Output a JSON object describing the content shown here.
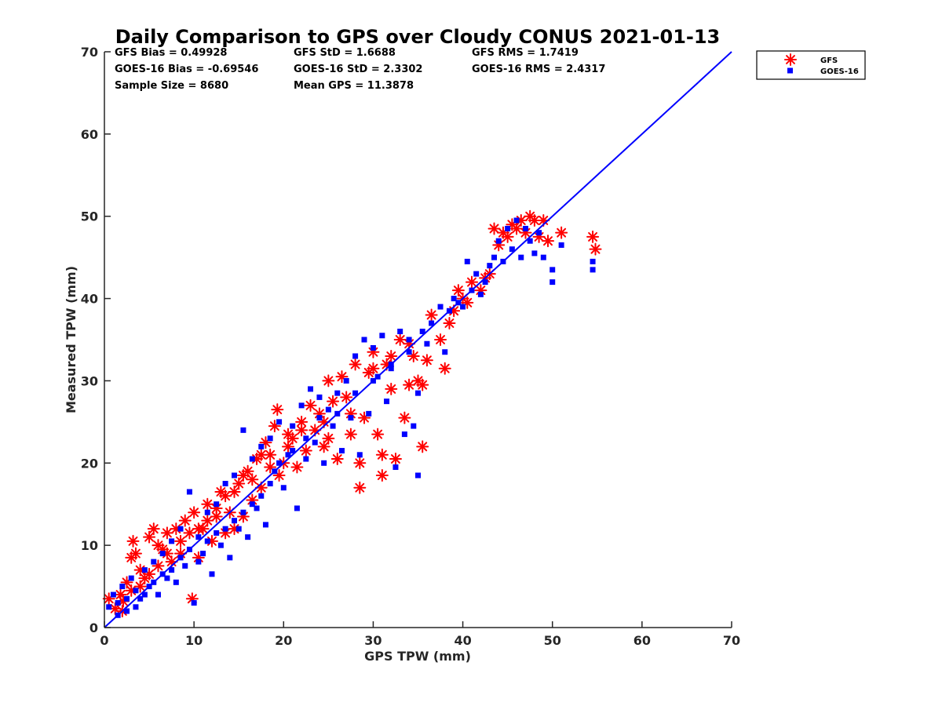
{
  "chart_data": {
    "type": "scatter",
    "title": "Daily Comparison to GPS over Cloudy CONUS 2021-01-13",
    "xlabel": "GPS TPW (mm)",
    "ylabel": "Measured TPW (mm)",
    "xlim": [
      0,
      70
    ],
    "ylim": [
      0,
      70
    ],
    "xticks": [
      0,
      10,
      20,
      30,
      40,
      50,
      60,
      70
    ],
    "yticks": [
      0,
      10,
      20,
      30,
      40,
      50,
      60,
      70
    ],
    "grid": false,
    "legend_position": "outside-top-right",
    "reference_line": {
      "x": [
        0,
        70
      ],
      "y": [
        0,
        70
      ],
      "color": "#0000ff"
    },
    "stats": [
      "GFS Bias = 0.49928",
      "GOES-16 Bias = -0.69546",
      "Sample Size = 8680",
      "GFS StD = 1.6688",
      "GOES-16 StD = 2.3302",
      "Mean GPS = 11.3878",
      "GFS RMS = 1.7419",
      "GOES-16 RMS = 2.4317"
    ],
    "series": [
      {
        "name": "GFS",
        "marker": "asterisk",
        "color": "#ff0000",
        "points": [
          [
            0.5,
            3.5
          ],
          [
            1.2,
            2.3
          ],
          [
            1.8,
            4.0
          ],
          [
            2.1,
            3.2
          ],
          [
            2.5,
            5.5
          ],
          [
            3.0,
            8.5
          ],
          [
            3.2,
            10.5
          ],
          [
            3.5,
            9.0
          ],
          [
            4.0,
            7.0
          ],
          [
            4.5,
            6.0
          ],
          [
            5.0,
            11.0
          ],
          [
            5.5,
            12.0
          ],
          [
            6.0,
            10.0
          ],
          [
            6.5,
            9.5
          ],
          [
            7.0,
            11.5
          ],
          [
            7.5,
            8.0
          ],
          [
            8.0,
            12.0
          ],
          [
            8.5,
            9.0
          ],
          [
            9.0,
            13.0
          ],
          [
            9.8,
            3.5
          ],
          [
            10.0,
            14.0
          ],
          [
            10.5,
            8.5
          ],
          [
            11.0,
            12.0
          ],
          [
            11.5,
            15.0
          ],
          [
            12.0,
            10.5
          ],
          [
            12.5,
            13.5
          ],
          [
            13.0,
            16.5
          ],
          [
            13.5,
            11.5
          ],
          [
            14.0,
            14.0
          ],
          [
            14.5,
            12.0
          ],
          [
            15.0,
            17.5
          ],
          [
            15.5,
            13.5
          ],
          [
            16.0,
            19.0
          ],
          [
            16.5,
            15.5
          ],
          [
            17.0,
            20.5
          ],
          [
            17.5,
            17.0
          ],
          [
            18.0,
            22.5
          ],
          [
            18.5,
            19.5
          ],
          [
            19.0,
            24.5
          ],
          [
            19.3,
            26.5
          ],
          [
            19.5,
            18.5
          ],
          [
            20.0,
            20.0
          ],
          [
            20.5,
            22.0
          ],
          [
            21.0,
            23.0
          ],
          [
            21.5,
            19.5
          ],
          [
            22.0,
            25.0
          ],
          [
            22.5,
            21.5
          ],
          [
            23.0,
            27.0
          ],
          [
            23.5,
            24.0
          ],
          [
            24.0,
            26.0
          ],
          [
            24.5,
            22.0
          ],
          [
            25.0,
            30.0
          ],
          [
            25.5,
            27.5
          ],
          [
            26.0,
            20.5
          ],
          [
            26.5,
            30.5
          ],
          [
            27.0,
            28.0
          ],
          [
            27.5,
            23.5
          ],
          [
            28.0,
            32.0
          ],
          [
            28.5,
            17.0
          ],
          [
            28.5,
            20.0
          ],
          [
            29.0,
            25.5
          ],
          [
            29.5,
            31.0
          ],
          [
            30.0,
            33.5
          ],
          [
            30.5,
            23.5
          ],
          [
            31.0,
            21.0
          ],
          [
            31.0,
            18.5
          ],
          [
            31.5,
            32.0
          ],
          [
            32.0,
            29.0
          ],
          [
            32.5,
            20.5
          ],
          [
            33.0,
            35.0
          ],
          [
            33.5,
            25.5
          ],
          [
            34.0,
            29.5
          ],
          [
            34.5,
            33.0
          ],
          [
            35.0,
            30.0
          ],
          [
            35.5,
            22.0
          ],
          [
            35.5,
            29.5
          ],
          [
            36.0,
            32.5
          ],
          [
            37.5,
            35.0
          ],
          [
            38.0,
            31.5
          ],
          [
            38.5,
            37.0
          ],
          [
            39.0,
            38.5
          ],
          [
            40.0,
            40.0
          ],
          [
            40.5,
            39.5
          ],
          [
            41.0,
            42.0
          ],
          [
            42.0,
            41.0
          ],
          [
            43.0,
            43.0
          ],
          [
            43.5,
            48.5
          ],
          [
            44.0,
            46.5
          ],
          [
            44.5,
            48.0
          ],
          [
            45.0,
            47.5
          ],
          [
            45.5,
            49.0
          ],
          [
            46.0,
            48.5
          ],
          [
            46.5,
            49.5
          ],
          [
            47.0,
            48.0
          ],
          [
            47.5,
            50.0
          ],
          [
            48.0,
            49.5
          ],
          [
            48.5,
            47.5
          ],
          [
            49.0,
            49.5
          ],
          [
            49.5,
            47.0
          ],
          [
            51.0,
            48.0
          ],
          [
            54.5,
            47.5
          ],
          [
            54.8,
            46.0
          ],
          [
            2.0,
            2.0
          ],
          [
            3.0,
            4.5
          ],
          [
            4.0,
            5.0
          ],
          [
            5.0,
            6.5
          ],
          [
            6.0,
            7.5
          ],
          [
            7.0,
            9.0
          ],
          [
            8.5,
            10.5
          ],
          [
            9.5,
            11.5
          ],
          [
            10.5,
            12.0
          ],
          [
            11.5,
            13.0
          ],
          [
            12.5,
            14.5
          ],
          [
            13.5,
            16.0
          ],
          [
            14.5,
            16.5
          ],
          [
            15.5,
            18.5
          ],
          [
            16.5,
            18.0
          ],
          [
            17.5,
            21.0
          ],
          [
            18.5,
            21.0
          ],
          [
            20.5,
            23.5
          ],
          [
            22.0,
            24.0
          ],
          [
            24.5,
            25.0
          ],
          [
            25.0,
            23.0
          ],
          [
            27.5,
            26.0
          ],
          [
            30.0,
            31.5
          ],
          [
            32.0,
            33.0
          ],
          [
            34.0,
            34.5
          ],
          [
            36.5,
            38.0
          ],
          [
            39.5,
            41.0
          ],
          [
            42.5,
            42.5
          ]
        ]
      },
      {
        "name": "GOES-16",
        "marker": "square",
        "color": "#0000ff",
        "points": [
          [
            0.5,
            2.5
          ],
          [
            1.0,
            4.0
          ],
          [
            1.5,
            3.0
          ],
          [
            2.0,
            5.0
          ],
          [
            2.5,
            2.0
          ],
          [
            3.0,
            6.0
          ],
          [
            3.5,
            4.5
          ],
          [
            4.0,
            3.5
          ],
          [
            4.5,
            7.0
          ],
          [
            5.0,
            5.0
          ],
          [
            5.5,
            8.0
          ],
          [
            6.0,
            4.0
          ],
          [
            6.5,
            9.0
          ],
          [
            7.0,
            6.0
          ],
          [
            7.5,
            10.5
          ],
          [
            8.0,
            5.5
          ],
          [
            8.5,
            12.0
          ],
          [
            9.0,
            7.5
          ],
          [
            9.5,
            16.5
          ],
          [
            10.0,
            3.0
          ],
          [
            10.5,
            11.0
          ],
          [
            11.0,
            9.0
          ],
          [
            11.5,
            14.0
          ],
          [
            12.0,
            6.5
          ],
          [
            12.5,
            15.0
          ],
          [
            13.0,
            10.0
          ],
          [
            13.5,
            17.5
          ],
          [
            14.0,
            8.5
          ],
          [
            14.5,
            18.5
          ],
          [
            15.0,
            12.0
          ],
          [
            15.5,
            24.0
          ],
          [
            16.0,
            11.0
          ],
          [
            16.5,
            20.5
          ],
          [
            17.0,
            14.5
          ],
          [
            17.5,
            22.0
          ],
          [
            18.0,
            12.5
          ],
          [
            18.5,
            23.0
          ],
          [
            19.0,
            19.0
          ],
          [
            19.5,
            25.0
          ],
          [
            20.0,
            17.0
          ],
          [
            20.5,
            21.0
          ],
          [
            21.0,
            24.5
          ],
          [
            21.5,
            14.5
          ],
          [
            22.0,
            27.0
          ],
          [
            22.5,
            20.5
          ],
          [
            23.0,
            29.0
          ],
          [
            23.5,
            22.5
          ],
          [
            24.0,
            28.0
          ],
          [
            24.5,
            20.0
          ],
          [
            25.0,
            26.5
          ],
          [
            25.5,
            24.5
          ],
          [
            26.0,
            28.5
          ],
          [
            26.5,
            21.5
          ],
          [
            27.0,
            30.0
          ],
          [
            27.5,
            25.5
          ],
          [
            28.0,
            33.0
          ],
          [
            28.5,
            21.0
          ],
          [
            29.0,
            35.0
          ],
          [
            29.5,
            26.0
          ],
          [
            30.0,
            34.0
          ],
          [
            30.5,
            30.5
          ],
          [
            31.0,
            35.5
          ],
          [
            31.5,
            27.5
          ],
          [
            32.0,
            31.5
          ],
          [
            32.5,
            19.5
          ],
          [
            33.0,
            36.0
          ],
          [
            33.5,
            23.5
          ],
          [
            34.0,
            33.5
          ],
          [
            34.5,
            24.5
          ],
          [
            35.0,
            18.5
          ],
          [
            35.0,
            28.5
          ],
          [
            35.5,
            36.0
          ],
          [
            36.0,
            34.5
          ],
          [
            37.5,
            39.0
          ],
          [
            38.0,
            33.5
          ],
          [
            38.5,
            38.5
          ],
          [
            39.0,
            40.0
          ],
          [
            40.0,
            39.0
          ],
          [
            40.5,
            44.5
          ],
          [
            41.0,
            41.0
          ],
          [
            41.5,
            43.0
          ],
          [
            42.0,
            40.5
          ],
          [
            42.5,
            42.0
          ],
          [
            43.0,
            44.0
          ],
          [
            43.5,
            45.0
          ],
          [
            44.0,
            47.0
          ],
          [
            44.5,
            44.5
          ],
          [
            45.0,
            48.5
          ],
          [
            45.5,
            46.0
          ],
          [
            46.0,
            49.5
          ],
          [
            46.5,
            45.0
          ],
          [
            47.0,
            48.5
          ],
          [
            47.5,
            47.0
          ],
          [
            48.0,
            45.5
          ],
          [
            48.5,
            48.0
          ],
          [
            49.0,
            45.0
          ],
          [
            50.0,
            43.5
          ],
          [
            50.0,
            42.0
          ],
          [
            51.0,
            46.5
          ],
          [
            54.5,
            43.5
          ],
          [
            54.5,
            44.5
          ],
          [
            1.5,
            1.5
          ],
          [
            2.5,
            3.5
          ],
          [
            3.5,
            2.5
          ],
          [
            4.5,
            4.0
          ],
          [
            5.5,
            5.5
          ],
          [
            6.5,
            6.5
          ],
          [
            7.5,
            7.0
          ],
          [
            8.5,
            8.5
          ],
          [
            9.5,
            9.5
          ],
          [
            10.5,
            8.0
          ],
          [
            11.5,
            10.5
          ],
          [
            12.5,
            11.5
          ],
          [
            13.5,
            12.0
          ],
          [
            14.5,
            13.0
          ],
          [
            15.5,
            14.0
          ],
          [
            16.5,
            15.0
          ],
          [
            17.5,
            16.0
          ],
          [
            18.5,
            17.5
          ],
          [
            19.5,
            20.0
          ],
          [
            21.0,
            21.5
          ],
          [
            22.5,
            23.0
          ],
          [
            24.0,
            25.5
          ],
          [
            26.0,
            26.0
          ],
          [
            28.0,
            28.5
          ],
          [
            30.0,
            30.0
          ],
          [
            32.0,
            32.0
          ],
          [
            34.0,
            35.0
          ],
          [
            36.5,
            37.0
          ],
          [
            39.5,
            39.5
          ]
        ]
      }
    ]
  }
}
